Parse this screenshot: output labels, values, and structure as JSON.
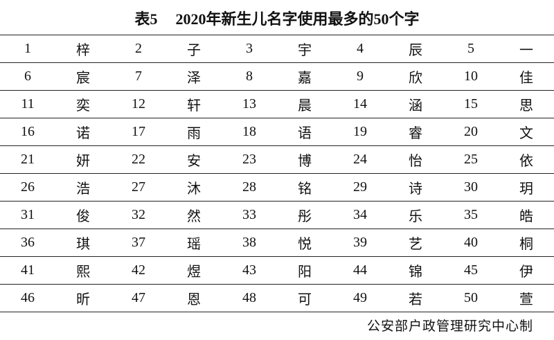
{
  "document": {
    "title_label": "表5",
    "title_text": "2020年新生儿名字使用最多的50个字",
    "footer": "公安部户政管理研究中心制"
  },
  "rows": [
    [
      {
        "rank": "1",
        "char": "梓"
      },
      {
        "rank": "2",
        "char": "子"
      },
      {
        "rank": "3",
        "char": "宇"
      },
      {
        "rank": "4",
        "char": "辰"
      },
      {
        "rank": "5",
        "char": "一"
      }
    ],
    [
      {
        "rank": "6",
        "char": "宸"
      },
      {
        "rank": "7",
        "char": "泽"
      },
      {
        "rank": "8",
        "char": "嘉"
      },
      {
        "rank": "9",
        "char": "欣"
      },
      {
        "rank": "10",
        "char": "佳"
      }
    ],
    [
      {
        "rank": "11",
        "char": "奕"
      },
      {
        "rank": "12",
        "char": "轩"
      },
      {
        "rank": "13",
        "char": "晨"
      },
      {
        "rank": "14",
        "char": "涵"
      },
      {
        "rank": "15",
        "char": "思"
      }
    ],
    [
      {
        "rank": "16",
        "char": "诺"
      },
      {
        "rank": "17",
        "char": "雨"
      },
      {
        "rank": "18",
        "char": "语"
      },
      {
        "rank": "19",
        "char": "睿"
      },
      {
        "rank": "20",
        "char": "文"
      }
    ],
    [
      {
        "rank": "21",
        "char": "妍"
      },
      {
        "rank": "22",
        "char": "安"
      },
      {
        "rank": "23",
        "char": "博"
      },
      {
        "rank": "24",
        "char": "怡"
      },
      {
        "rank": "25",
        "char": "依"
      }
    ],
    [
      {
        "rank": "26",
        "char": "浩"
      },
      {
        "rank": "27",
        "char": "沐"
      },
      {
        "rank": "28",
        "char": "铭"
      },
      {
        "rank": "29",
        "char": "诗"
      },
      {
        "rank": "30",
        "char": "玥"
      }
    ],
    [
      {
        "rank": "31",
        "char": "俊"
      },
      {
        "rank": "32",
        "char": "然"
      },
      {
        "rank": "33",
        "char": "彤"
      },
      {
        "rank": "34",
        "char": "乐"
      },
      {
        "rank": "35",
        "char": "皓"
      }
    ],
    [
      {
        "rank": "36",
        "char": "琪"
      },
      {
        "rank": "37",
        "char": "瑶"
      },
      {
        "rank": "38",
        "char": "悦"
      },
      {
        "rank": "39",
        "char": "艺"
      },
      {
        "rank": "40",
        "char": "桐"
      }
    ],
    [
      {
        "rank": "41",
        "char": "熙"
      },
      {
        "rank": "42",
        "char": "煜"
      },
      {
        "rank": "43",
        "char": "阳"
      },
      {
        "rank": "44",
        "char": "锦"
      },
      {
        "rank": "45",
        "char": "伊"
      }
    ],
    [
      {
        "rank": "46",
        "char": "昕"
      },
      {
        "rank": "47",
        "char": "恩"
      },
      {
        "rank": "48",
        "char": "可"
      },
      {
        "rank": "49",
        "char": "若"
      },
      {
        "rank": "50",
        "char": "萱"
      }
    ]
  ]
}
